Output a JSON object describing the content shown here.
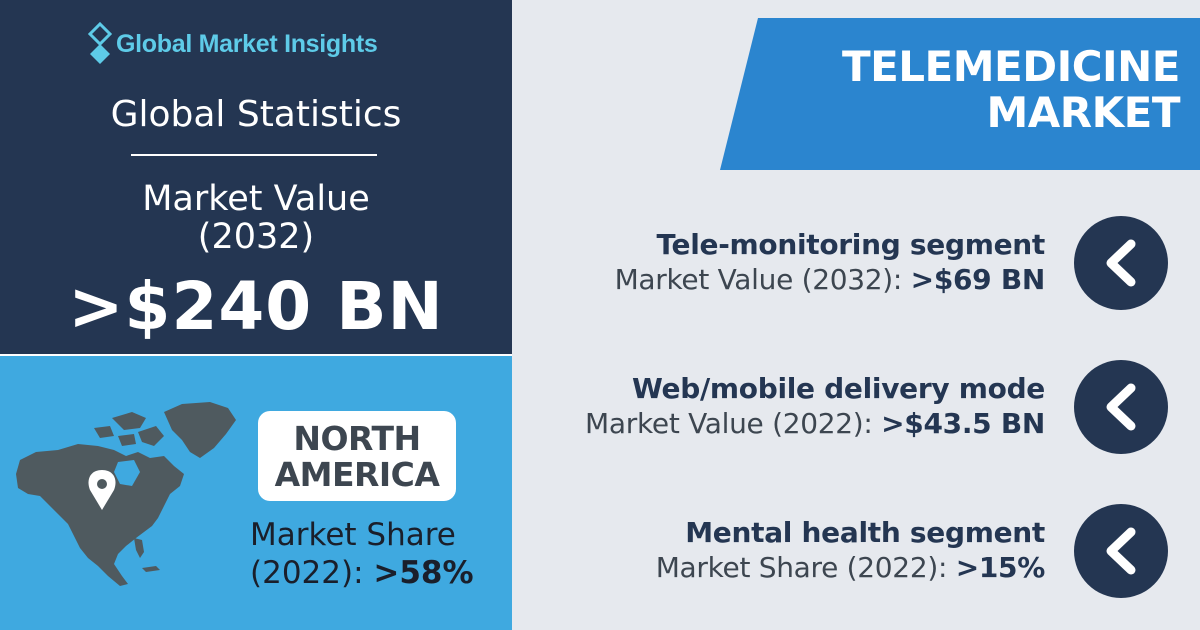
{
  "brand": {
    "name": "Global Market Insights",
    "accent": "#5ecbe8"
  },
  "colors": {
    "dark_navy": "#243652",
    "light_blue": "#3fa9e0",
    "banner_blue": "#2b85cf",
    "background": "#e6e9ee"
  },
  "global": {
    "title": "Global Statistics",
    "market_value_label_line1": "Market Value",
    "market_value_label_line2": "(2032)",
    "market_value": ">$240 BN"
  },
  "region": {
    "name_line1": "NORTH",
    "name_line2": "AMERICA",
    "share_label_line1": "Market Share",
    "share_label_line2": "(2022):",
    "share_value": ">58%"
  },
  "banner": {
    "line1": "TELEMEDICINE",
    "line2": "MARKET"
  },
  "segments": [
    {
      "title": "Tele-monitoring segment",
      "label": "Market Value (2032):",
      "value": ">$69 BN",
      "icon": "chevron-left-icon"
    },
    {
      "title": "Web/mobile delivery mode",
      "label": "Market Value (2022):",
      "value": ">$43.5 BN",
      "icon": "chevron-left-icon"
    },
    {
      "title": "Mental health segment",
      "label": "Market Share (2022):",
      "value": ">15%",
      "icon": "chevron-left-icon"
    }
  ]
}
